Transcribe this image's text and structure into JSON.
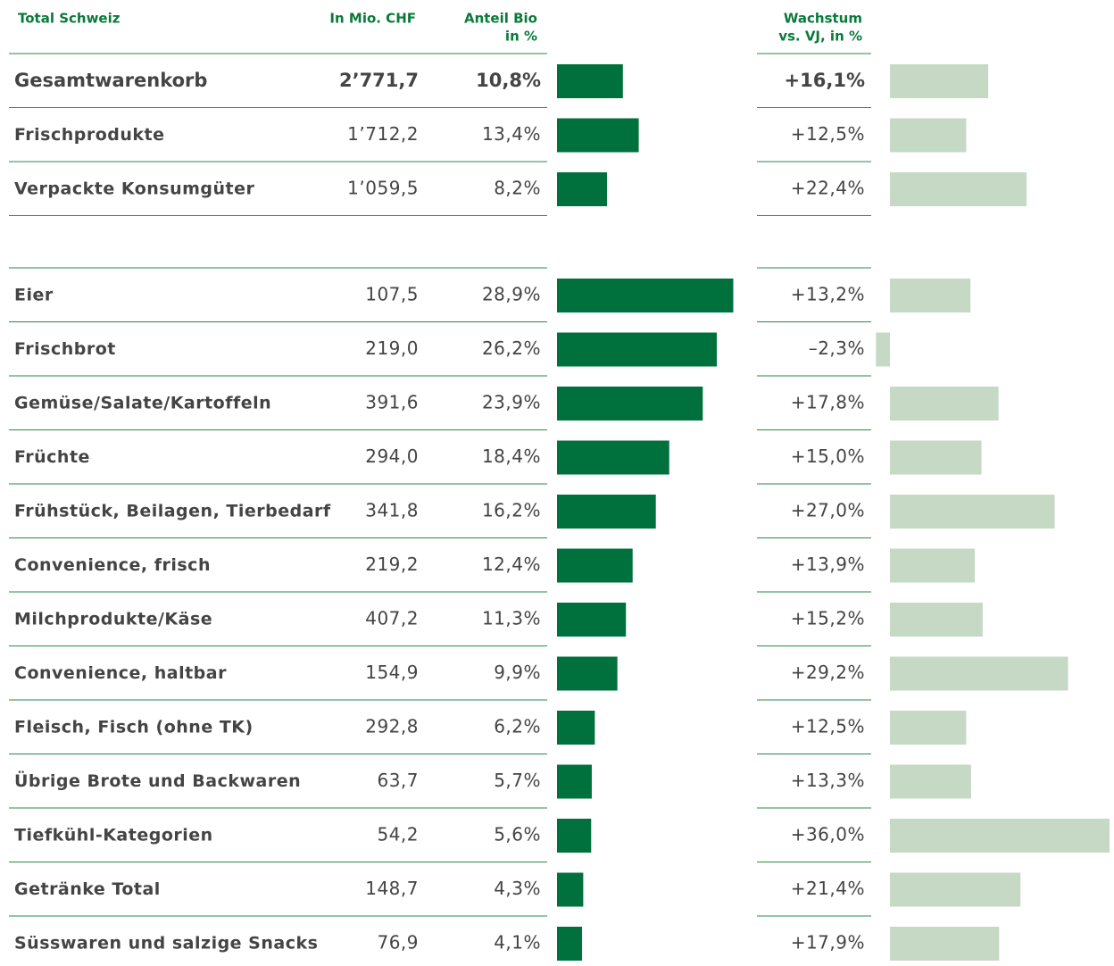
{
  "chart_data": {
    "type": "bar_table",
    "title": "Total Schweiz",
    "headers": {
      "sales": "In Mio. CHF",
      "share": [
        "Anteil Bio",
        "in %"
      ],
      "growth": [
        "Wachstum",
        "vs. VJ, in %"
      ]
    },
    "share_color": "#00703c",
    "growth_color": "#c5d9c4",
    "xlim": [
      0,
      36
    ],
    "sections": [
      {
        "categories": [
          "Gesamtwarenkorb",
          "Frischprodukte",
          "Verpackte Konsumgüter"
        ],
        "sales": [
          2771.7,
          1712.2,
          1059.5
        ],
        "sales_labels": [
          "2’771,7",
          "1’712,2",
          "1’059,5"
        ],
        "share": [
          10.8,
          13.4,
          8.2
        ],
        "share_labels": [
          "10,8%",
          "13,4%",
          "8,2%"
        ],
        "growth": [
          16.1,
          12.5,
          22.4
        ],
        "growth_labels": [
          "+16,1%",
          "+12,5%",
          "+22,4%"
        ]
      },
      {
        "categories": [
          "Eier",
          "Frischbrot",
          "Gemüse/Salate/Kartoffeln",
          "Früchte",
          "Frühstück, Beilagen, Tierbedarf",
          "Convenience, frisch",
          "Milchprodukte/Käse",
          "Convenience, haltbar",
          "Fleisch, Fisch (ohne TK)",
          "Übrige Brote und Backwaren",
          "Tiefkühl-Kategorien",
          "Getränke Total",
          "Süsswaren und salzige Snacks"
        ],
        "sales": [
          107.5,
          219.0,
          391.6,
          294.0,
          341.8,
          219.2,
          407.2,
          154.9,
          292.8,
          63.7,
          54.2,
          148.7,
          76.9
        ],
        "sales_labels": [
          "107,5",
          "219,0",
          "391,6",
          "294,0",
          "341,8",
          "219,2",
          "407,2",
          "154,9",
          "292,8",
          "63,7",
          "54,2",
          "148,7",
          "76,9"
        ],
        "share": [
          28.9,
          26.2,
          23.9,
          18.4,
          16.2,
          12.4,
          11.3,
          9.9,
          6.2,
          5.7,
          5.6,
          4.3,
          4.1
        ],
        "share_labels": [
          "28,9%",
          "26,2%",
          "23,9%",
          "18,4%",
          "16,2%",
          "12,4%",
          "11,3%",
          "9,9%",
          "6,2%",
          "5,7%",
          "5,6%",
          "4,3%",
          "4,1%"
        ],
        "growth": [
          13.2,
          -2.3,
          17.8,
          15.0,
          27.0,
          13.9,
          15.2,
          29.2,
          12.5,
          13.3,
          36.0,
          21.4,
          17.9
        ],
        "growth_labels": [
          "+13,2%",
          "–2,3%",
          "+17,8%",
          "+15,0%",
          "+27,0%",
          "+13,9%",
          "+15,2%",
          "+29,2%",
          "+12,5%",
          "+13,3%",
          "+36,0%",
          "+21,4%",
          "+17,9%"
        ]
      }
    ]
  }
}
